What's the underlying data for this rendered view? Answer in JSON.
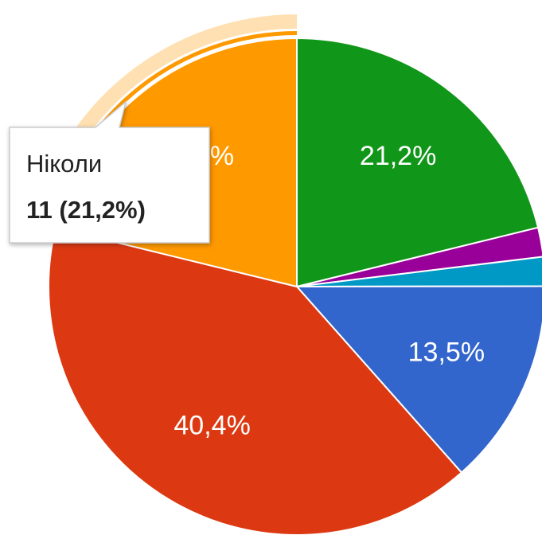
{
  "chart_data": {
    "type": "pie",
    "categories": [
      null,
      null,
      null,
      null,
      null,
      "Ніколи"
    ],
    "values": [
      21.2,
      1.9,
      1.9,
      13.5,
      40.4,
      21.2
    ],
    "value_labels": [
      "21,2%",
      null,
      null,
      "13,5%",
      "40,4%",
      "21,2%"
    ],
    "colors": [
      "#109618",
      "#990099",
      "#0099c6",
      "#3366cc",
      "#dc3912",
      "#ff9900"
    ],
    "tooltip": {
      "title": "Ніколи",
      "text": "11 (21,2%)"
    }
  }
}
